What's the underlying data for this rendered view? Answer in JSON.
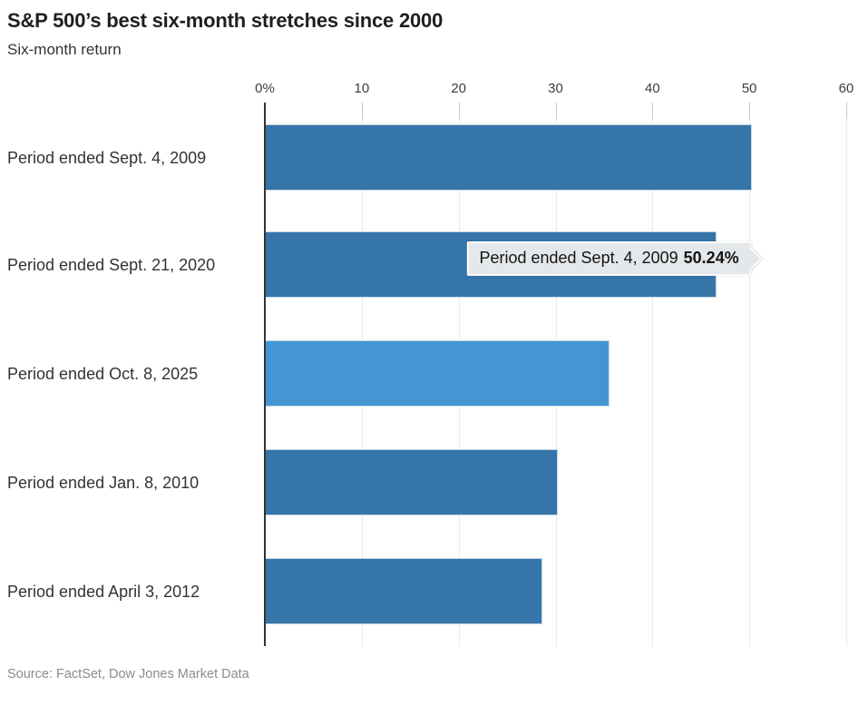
{
  "header": {
    "title": "S&P 500’s best six-month stretches since 2000",
    "subtitle": "Six-month return"
  },
  "tooltip": {
    "label": "Period ended Sept. 4, 2009",
    "value": "50.24%"
  },
  "source": "Source: FactSet, Dow Jones Market Data",
  "colors": {
    "bar_default": "#3575a9",
    "bar_highlight": "#4695d3",
    "axis_line": "#333333",
    "gridline": "#e9e9e9",
    "tooltip_bg": "#e5e8ea",
    "title_text": "#1f1f1f",
    "label_text": "#333333",
    "source_text": "#8c8c8c"
  },
  "chart_data": {
    "type": "bar",
    "orientation": "horizontal",
    "title": "S&P 500’s best six-month stretches since 2000",
    "subtitle": "Six-month return",
    "categories": [
      "Period ended Sept. 4, 2009",
      "Period ended Sept. 21, 2020",
      "Period ended Oct. 8, 2025",
      "Period ended Jan. 8, 2010",
      "Period ended April 3, 2012"
    ],
    "values": [
      50.24,
      46.6,
      35.6,
      30.2,
      28.6
    ],
    "bar_colors": [
      "#3575a9",
      "#3575a9",
      "#4695d3",
      "#3575a9",
      "#3575a9"
    ],
    "highlight_index": 2,
    "xlim": [
      0,
      60
    ],
    "axis": {
      "ticks": [
        {
          "label": "0%",
          "value": 0
        },
        {
          "label": "10",
          "value": 10
        },
        {
          "label": "20",
          "value": 20
        },
        {
          "label": "30",
          "value": 30
        },
        {
          "label": "40",
          "value": 40
        },
        {
          "label": "50",
          "value": 50
        },
        {
          "label": "60",
          "value": 60
        }
      ]
    },
    "grid": true,
    "legend": false,
    "annotation": "Period ended Sept. 4, 2009 50.24%"
  }
}
